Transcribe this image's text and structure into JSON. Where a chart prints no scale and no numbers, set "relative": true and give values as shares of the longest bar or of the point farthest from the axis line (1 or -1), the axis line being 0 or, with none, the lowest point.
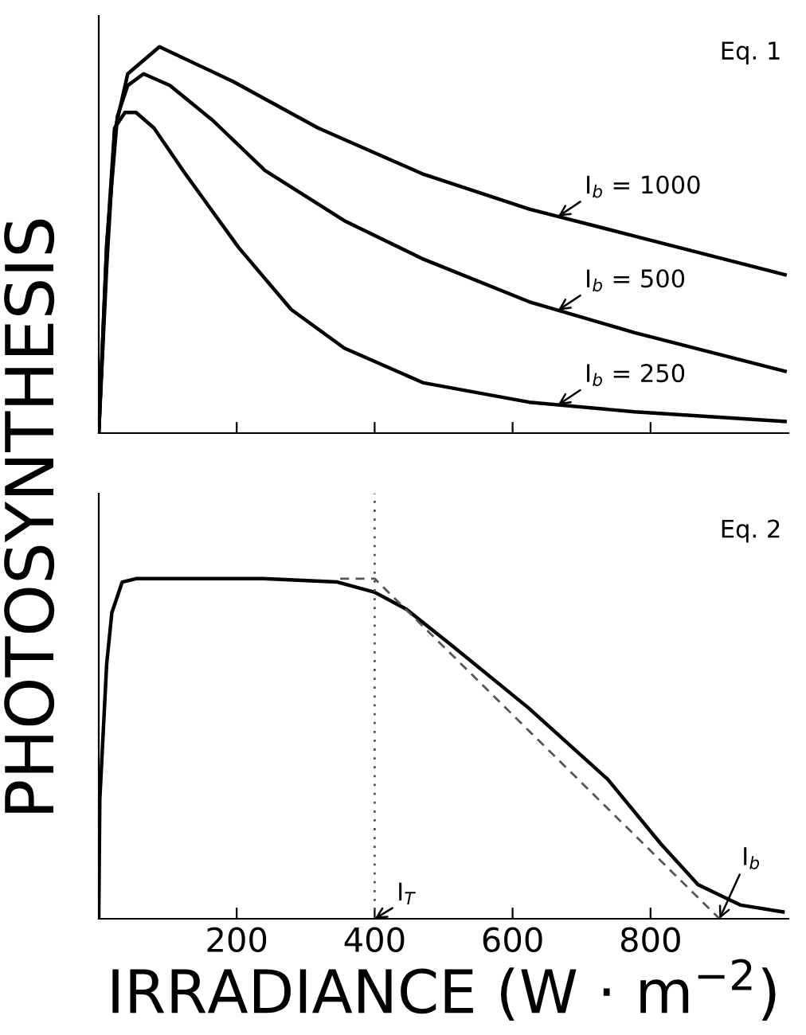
{
  "chart_data": [
    {
      "type": "line",
      "relative": true,
      "ylabel": "PHOTOSYNTHESIS",
      "xlim": [
        0,
        1000
      ],
      "xticks": [
        {
          "value": 200,
          "label": null
        },
        {
          "value": 400,
          "label": null
        },
        {
          "value": 600,
          "label": null
        },
        {
          "value": 800,
          "label": null
        }
      ],
      "tick_labels": false,
      "grid": false,
      "legend": false,
      "series": [
        {
          "name": "I$_{b}$ = 1000",
          "color": "#000000",
          "x": [
            0,
            11.5,
            23,
            42,
            88,
            195,
            318,
            471,
            624,
            777,
            995
          ],
          "values": [
            0,
            0.43,
            0.78,
            0.93,
            1,
            0.91,
            0.79,
            0.67,
            0.58,
            0.51,
            0.41
          ]
        },
        {
          "name": "I$_{b}$ = 500",
          "color": "#000000",
          "x": [
            0,
            11.5,
            27,
            42,
            65,
            103,
            165,
            241,
            356,
            471,
            624,
            777,
            995
          ],
          "values": [
            0,
            0.49,
            0.82,
            0.9,
            0.93,
            0.9,
            0.81,
            0.68,
            0.55,
            0.45,
            0.34,
            0.26,
            0.16
          ]
        },
        {
          "name": "I$_{b}$ = 250",
          "color": "#000000",
          "x": [
            0,
            11.5,
            23,
            38,
            54,
            80,
            126,
            203,
            279,
            356,
            471,
            624,
            777,
            995
          ],
          "values": [
            0,
            0.48,
            0.79,
            0.83,
            0.83,
            0.79,
            0.67,
            0.48,
            0.32,
            0.22,
            0.13,
            0.08,
            0.055,
            0.03
          ]
        }
      ],
      "annotations": [
        "Eq. 1"
      ]
    },
    {
      "type": "line",
      "relative": true,
      "xlabel": "IRRADIANCE (W · m$^{−2}$)",
      "xlim": [
        0,
        1000
      ],
      "xticks": [
        200,
        400,
        600,
        800
      ],
      "tick_labels": "x",
      "grid": false,
      "legend": false,
      "series": [
        {
          "color": "#000000",
          "x": [
            0,
            1.5,
            11.5,
            19,
            34,
            54,
            238,
            346,
            400,
            446,
            508,
            623,
            738,
            815,
            869,
            931,
            992
          ],
          "values": [
            0,
            0.35,
            0.75,
            0.9,
            0.99,
            1,
            1,
            0.99,
            0.96,
            0.91,
            0.81,
            0.62,
            0.41,
            0.22,
            0.1,
            0.04,
            0.02
          ]
        },
        {
          "color": "#555555",
          "line_style": "dashed",
          "x": [
            350,
            400,
            900
          ],
          "values": [
            1,
            1,
            0
          ]
        }
      ],
      "ref_lines": [
        {
          "axis": "x",
          "value": 400,
          "label": "I$_{T}$",
          "color": "#555555",
          "line_style": "dotted"
        }
      ],
      "annotations": [
        "Eq. 2",
        {
          "text": "I$_{b}$",
          "x": 900,
          "y": 0
        }
      ]
    }
  ]
}
